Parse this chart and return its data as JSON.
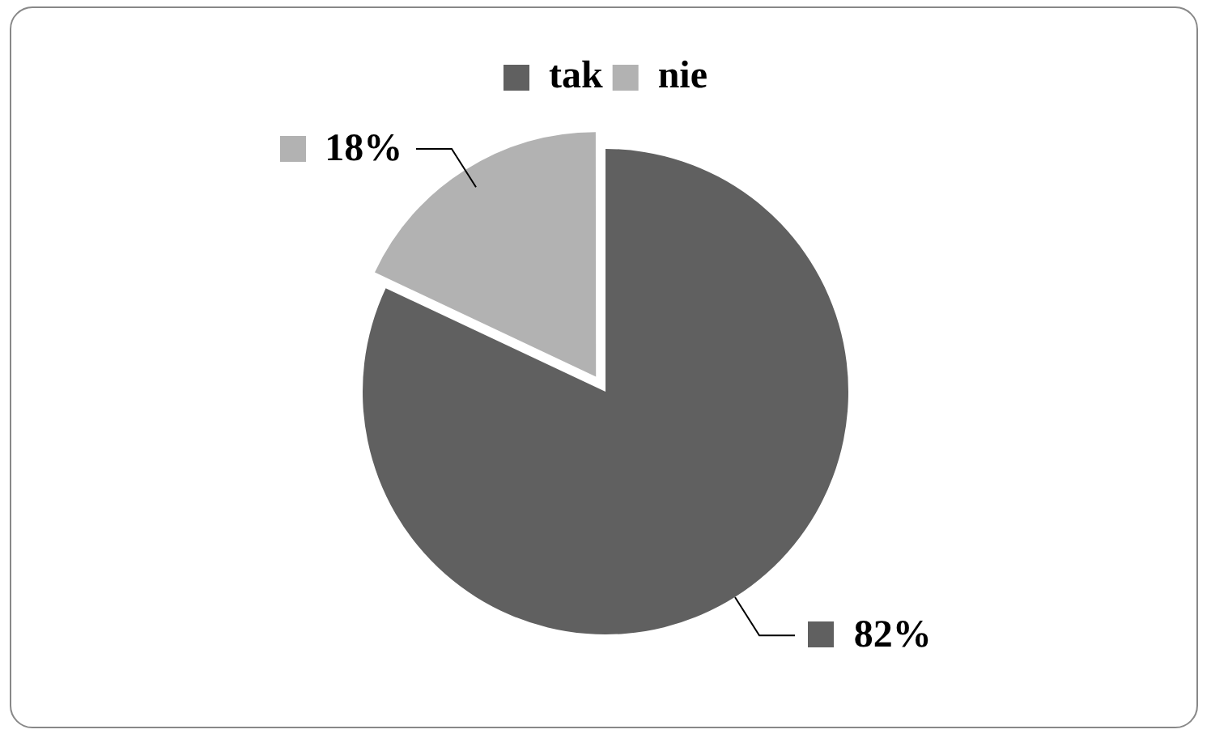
{
  "chart_data": {
    "type": "pie",
    "categories": [
      "tak",
      "nie"
    ],
    "values": [
      82,
      18
    ],
    "colors": [
      "#606060",
      "#b2b2b2"
    ],
    "value_labels": [
      "82%",
      "18%"
    ],
    "legend": "top"
  }
}
